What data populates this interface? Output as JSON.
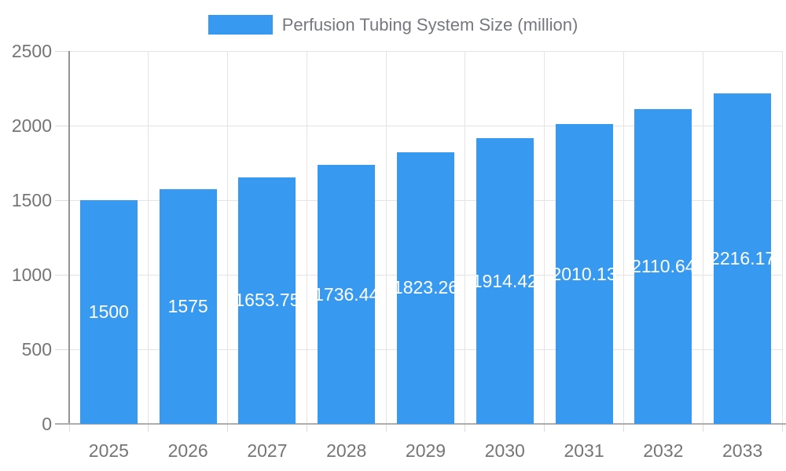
{
  "chart_data": {
    "type": "bar",
    "title": "Perfusion Tubing System Size (million)",
    "legend": {
      "label": "Perfusion Tubing System Size (million)",
      "position": "top-center"
    },
    "categories": [
      "2025",
      "2026",
      "2027",
      "2028",
      "2029",
      "2030",
      "2031",
      "2032",
      "2033"
    ],
    "series": [
      {
        "name": "Perfusion Tubing System Size (million)",
        "values": [
          1500,
          1575,
          1653.75,
          1736.44,
          1823.26,
          1914.42,
          2010.13,
          2110.64,
          2216.17
        ],
        "value_labels": [
          "1500",
          "1575",
          "1653.75",
          "1736.44",
          "1823.26",
          "1914.42",
          "2010.13",
          "2110.64",
          "2216.17"
        ]
      }
    ],
    "xlabel": "",
    "ylabel": "",
    "ylim": [
      0,
      2500
    ],
    "yticks": [
      0,
      500,
      1000,
      1500,
      2000,
      2500
    ],
    "ytick_labels": [
      "0",
      "500",
      "1000",
      "1500",
      "2000",
      "2500"
    ],
    "grid": true,
    "value_label_position": "inside-center",
    "colors": {
      "bar": "#3899F0",
      "value_label": "#ffffff",
      "axis_text": "#757575",
      "legend_text": "#75787d",
      "gridline": "#e4e4e4",
      "tick_mark": "#dcdcdc",
      "y_axis_line": "#949494",
      "x_axis_line": "#adadad",
      "background": "#ffffff"
    }
  }
}
